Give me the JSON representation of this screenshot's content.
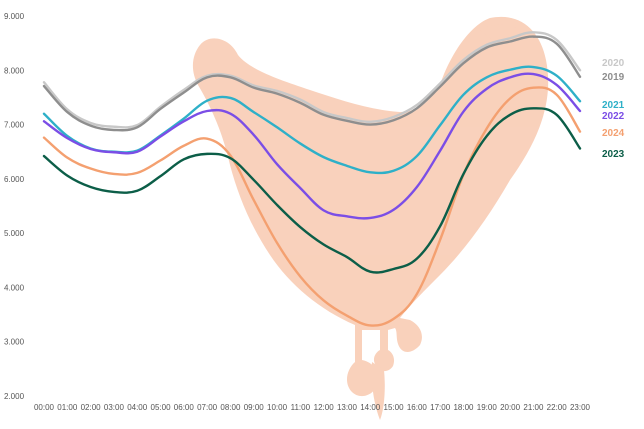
{
  "chart_data": {
    "type": "line",
    "title": "",
    "xlabel": "",
    "ylabel": "",
    "x": [
      "00:00",
      "01:00",
      "02:00",
      "03:00",
      "04:00",
      "05:00",
      "06:00",
      "07:00",
      "08:00",
      "09:00",
      "10:00",
      "11:00",
      "12:00",
      "13:00",
      "14:00",
      "15:00",
      "16:00",
      "17:00",
      "18:00",
      "19:00",
      "20:00",
      "21:00",
      "22:00",
      "23:00"
    ],
    "ylim": [
      2000,
      9000
    ],
    "yticks": [
      "2.000",
      "3.000",
      "4.000",
      "5.000",
      "6.000",
      "7.000",
      "8.000",
      "9.000"
    ],
    "ytick_values": [
      2000,
      3000,
      4000,
      5000,
      6000,
      7000,
      8000,
      9000
    ],
    "series": [
      {
        "name": "2020",
        "color": "#c8c8c8",
        "values": [
          7780,
          7280,
          7030,
          6960,
          6990,
          7330,
          7640,
          7900,
          7900,
          7720,
          7620,
          7460,
          7230,
          7120,
          7050,
          7140,
          7360,
          7760,
          8190,
          8470,
          8590,
          8700,
          8560,
          8000
        ]
      },
      {
        "name": "2019",
        "color": "#8e8e8e",
        "values": [
          7710,
          7230,
          6980,
          6900,
          6950,
          7290,
          7590,
          7870,
          7870,
          7680,
          7570,
          7400,
          7180,
          7070,
          7000,
          7080,
          7300,
          7700,
          8130,
          8420,
          8530,
          8620,
          8490,
          7880
        ]
      },
      {
        "name": "2021",
        "color": "#2eb0c8",
        "values": [
          7200,
          6790,
          6560,
          6500,
          6520,
          6800,
          7110,
          7440,
          7490,
          7230,
          6950,
          6650,
          6400,
          6240,
          6120,
          6150,
          6420,
          6990,
          7550,
          7870,
          8010,
          8060,
          7900,
          7430
        ]
      },
      {
        "name": "2022",
        "color": "#7b4ee6",
        "values": [
          7060,
          6750,
          6550,
          6490,
          6500,
          6780,
          7060,
          7250,
          7200,
          6810,
          6270,
          5830,
          5420,
          5310,
          5280,
          5430,
          5850,
          6520,
          7240,
          7660,
          7870,
          7930,
          7730,
          7250
        ]
      },
      {
        "name": "2024",
        "color": "#f4a070",
        "values": [
          6760,
          6390,
          6190,
          6090,
          6110,
          6340,
          6610,
          6740,
          6430,
          5610,
          4820,
          4200,
          3760,
          3480,
          3300,
          3420,
          3880,
          4880,
          6080,
          6930,
          7480,
          7680,
          7550,
          6870
        ]
      },
      {
        "name": "2023",
        "color": "#0c5e48",
        "values": [
          6420,
          6060,
          5850,
          5760,
          5780,
          6050,
          6360,
          6460,
          6380,
          5980,
          5520,
          5110,
          4790,
          4560,
          4290,
          4340,
          4530,
          5130,
          6090,
          6790,
          7180,
          7300,
          7180,
          6560
        ]
      }
    ],
    "legend_position": "right-end",
    "grid": false,
    "background_illustration": "peach mascot silhouette"
  }
}
